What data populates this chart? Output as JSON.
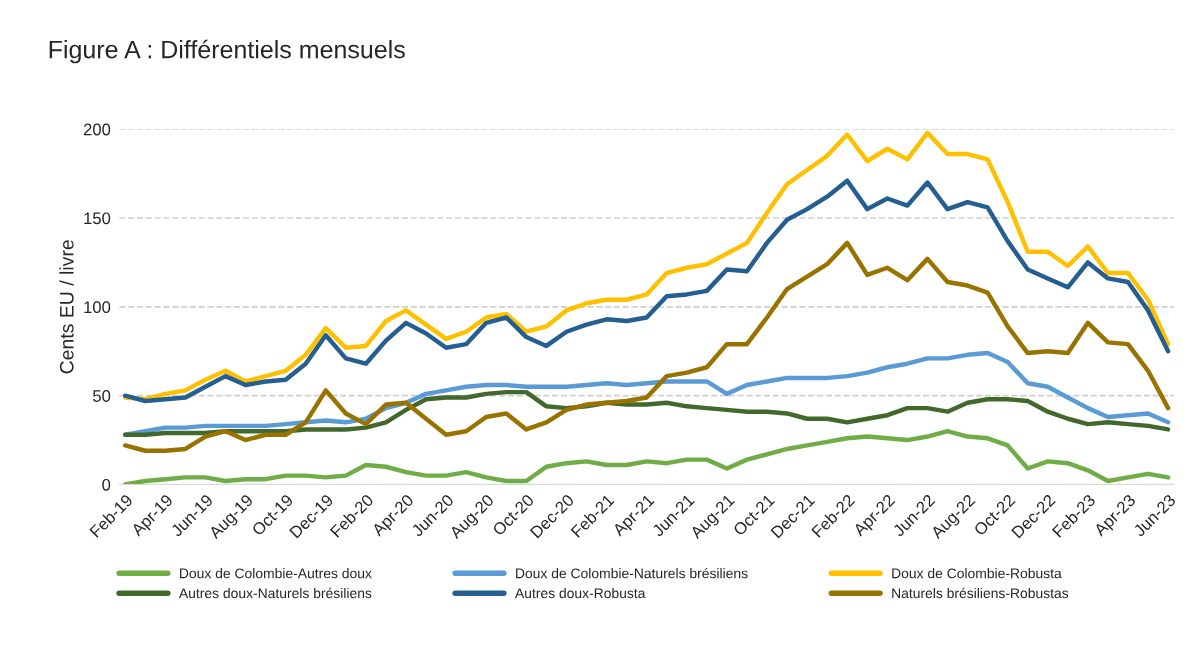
{
  "chart_data": {
    "type": "line",
    "title": "Figure A : Différentiels mensuels",
    "ylabel": "Cents EU / livre",
    "categories": [
      "Feb-19",
      null,
      "Apr-19",
      null,
      "Jun-19",
      null,
      "Aug-19",
      null,
      "Oct-19",
      null,
      "Dec-19",
      null,
      "Feb-20",
      null,
      "Apr-20",
      null,
      "Jun-20",
      null,
      "Aug-20",
      null,
      "Oct-20",
      null,
      "Dec-20",
      null,
      "Feb-21",
      null,
      "Apr-21",
      null,
      "Jun-21",
      null,
      "Aug-21",
      null,
      "Oct-21",
      null,
      "Dec-21",
      null,
      "Feb-22",
      null,
      "Apr-22",
      null,
      "Jun-22",
      null,
      "Aug-22",
      null,
      "Oct-22",
      null,
      "Dec-22",
      null,
      "Feb-23",
      null,
      "Apr-23",
      null,
      "Jun-23"
    ],
    "series": [
      {
        "name": "Doux de Colombie-Autres doux",
        "color": "#70ad47",
        "values": [
          0,
          2,
          3,
          4,
          4,
          2,
          3,
          3,
          5,
          5,
          4,
          5,
          11,
          10,
          7,
          5,
          5,
          7,
          4,
          2,
          2,
          10,
          12,
          13,
          11,
          11,
          13,
          12,
          14,
          14,
          9,
          14,
          17,
          20,
          22,
          24,
          26,
          27,
          26,
          25,
          27,
          30,
          27,
          26,
          22,
          9,
          13,
          12,
          8,
          2,
          4,
          6,
          4
        ]
      },
      {
        "name": "Doux de Colombie-Naturels brésiliens",
        "color": "#5b9bd5",
        "values": [
          28,
          30,
          32,
          32,
          33,
          33,
          33,
          33,
          34,
          35,
          36,
          35,
          37,
          43,
          46,
          51,
          53,
          55,
          56,
          56,
          55,
          55,
          55,
          56,
          57,
          56,
          57,
          58,
          58,
          58,
          51,
          56,
          58,
          60,
          60,
          60,
          61,
          63,
          66,
          68,
          71,
          71,
          73,
          74,
          69,
          57,
          55,
          49,
          43,
          38,
          39,
          40,
          35
        ]
      },
      {
        "name": "Doux de Colombie-Robusta",
        "color": "#ffc000",
        "values": [
          49,
          48,
          51,
          53,
          59,
          64,
          58,
          61,
          64,
          73,
          88,
          77,
          78,
          92,
          98,
          90,
          82,
          86,
          94,
          96,
          86,
          89,
          98,
          102,
          104,
          104,
          107,
          119,
          122,
          124,
          130,
          136,
          153,
          169,
          177,
          185,
          197,
          182,
          189,
          183,
          198,
          186,
          186,
          183,
          159,
          131,
          131,
          123,
          134,
          119,
          119,
          104,
          79
        ]
      },
      {
        "name": "Autres doux-Naturels brésiliens",
        "color": "#43682b",
        "values": [
          28,
          28,
          29,
          29,
          29,
          30,
          30,
          30,
          30,
          31,
          31,
          31,
          32,
          35,
          42,
          48,
          49,
          49,
          51,
          52,
          52,
          44,
          43,
          44,
          46,
          45,
          45,
          46,
          44,
          43,
          42,
          41,
          41,
          40,
          37,
          37,
          35,
          37,
          39,
          43,
          43,
          41,
          46,
          48,
          48,
          47,
          41,
          37,
          34,
          35,
          34,
          33,
          31
        ]
      },
      {
        "name": "Autres doux-Robusta",
        "color": "#255e91",
        "values": [
          50,
          47,
          48,
          49,
          55,
          61,
          56,
          58,
          59,
          68,
          84,
          71,
          68,
          81,
          91,
          85,
          77,
          79,
          91,
          94,
          83,
          78,
          86,
          90,
          93,
          92,
          94,
          106,
          107,
          109,
          121,
          120,
          136,
          149,
          155,
          162,
          171,
          155,
          161,
          157,
          170,
          155,
          159,
          156,
          137,
          121,
          116,
          111,
          125,
          116,
          114,
          98,
          75
        ]
      },
      {
        "name": "Naturels brésiliens-Robustas",
        "color": "#997300",
        "values": [
          22,
          19,
          19,
          20,
          27,
          30,
          25,
          28,
          28,
          35,
          53,
          40,
          34,
          45,
          46,
          37,
          28,
          30,
          38,
          40,
          31,
          35,
          42,
          45,
          46,
          47,
          49,
          61,
          63,
          66,
          79,
          79,
          94,
          110,
          117,
          124,
          136,
          118,
          122,
          115,
          127,
          114,
          112,
          108,
          89,
          74,
          75,
          74,
          91,
          80,
          79,
          64,
          43
        ]
      }
    ],
    "ylim": [
      0,
      200
    ],
    "yticks": [
      0,
      50,
      100,
      150,
      200
    ],
    "grid": "y",
    "legend": "bottom",
    "line_style": "solid",
    "marker": "none"
  }
}
